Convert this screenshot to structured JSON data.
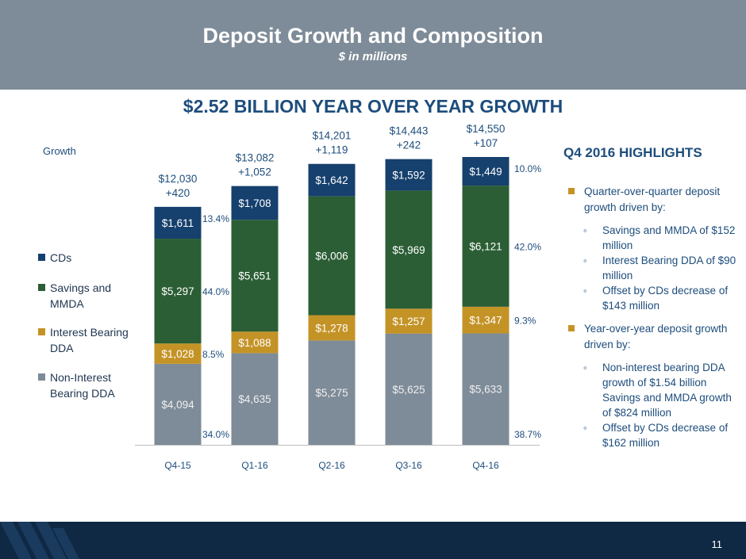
{
  "header": {
    "title": "Deposit Growth and Composition",
    "subtitle": "$ in millions"
  },
  "headline": "$2.52 BILLION YEAR OVER YEAR GROWTH",
  "growth_label": "Growth",
  "legend": [
    {
      "label": "CDs",
      "color": "#16406d"
    },
    {
      "label": "Savings and MMDA",
      "color": "#2b5e34"
    },
    {
      "label": "Interest Bearing DDA",
      "color": "#c49326"
    },
    {
      "label": "Non-Interest Bearing DDA",
      "color": "#7e8b98"
    }
  ],
  "chart_data": {
    "type": "bar",
    "stacked": true,
    "categories": [
      "Q4-15",
      "Q1-16",
      "Q2-16",
      "Q3-16",
      "Q4-16"
    ],
    "series": [
      {
        "name": "Non-Interest Bearing DDA",
        "color": "#7e8b98",
        "values": [
          4094,
          4635,
          5275,
          5625,
          5633
        ],
        "labels": [
          "$4,094",
          "$4,635",
          "$5,275",
          "$5,625",
          "$5,633"
        ]
      },
      {
        "name": "Interest Bearing DDA",
        "color": "#c49326",
        "values": [
          1028,
          1088,
          1278,
          1257,
          1347
        ],
        "labels": [
          "$1,028",
          "$1,088",
          "$1,278",
          "$1,257",
          "$1,347"
        ]
      },
      {
        "name": "Savings and MMDA",
        "color": "#2b5e34",
        "values": [
          5297,
          5651,
          6006,
          5969,
          6121
        ],
        "labels": [
          "$5,297",
          "$5,651",
          "$6,006",
          "$5,969",
          "$6,121"
        ]
      },
      {
        "name": "CDs",
        "color": "#16406d",
        "values": [
          1611,
          1708,
          1642,
          1592,
          1449
        ],
        "labels": [
          "$1,611",
          "$1,708",
          "$1,642",
          "$1,592",
          "$1,449"
        ]
      }
    ],
    "totals": [
      "$12,030",
      "$13,082",
      "$14,201",
      "$14,443",
      "$14,550"
    ],
    "growth": [
      "+420",
      "+1,052",
      "+1,119",
      "+242",
      "+107"
    ],
    "pct_q4_15": [
      "34.0%",
      "8.5%",
      "44.0%",
      "13.4%"
    ],
    "pct_q4_16": [
      "38.7%",
      "9.3%",
      "42.0%",
      "10.0%"
    ],
    "ylim": [
      0,
      15000
    ]
  },
  "highlights": {
    "title": "Q4 2016 HIGHLIGHTS",
    "bullet1": "Quarter-over-quarter deposit growth driven by:",
    "sub1": [
      "Savings and MMDA of $152 million",
      "Interest Bearing DDA of $90 million",
      "Offset by CDs decrease of $143 million"
    ],
    "bullet2": "Year-over-year deposit growth driven by:",
    "sub2": [
      "Non-interest bearing DDA growth of $1.54 billion",
      "Savings and MMDA growth of $824 million",
      "Offset by CDs decrease of $162 million"
    ],
    "sub_marker": "◦"
  },
  "page_number": "11"
}
